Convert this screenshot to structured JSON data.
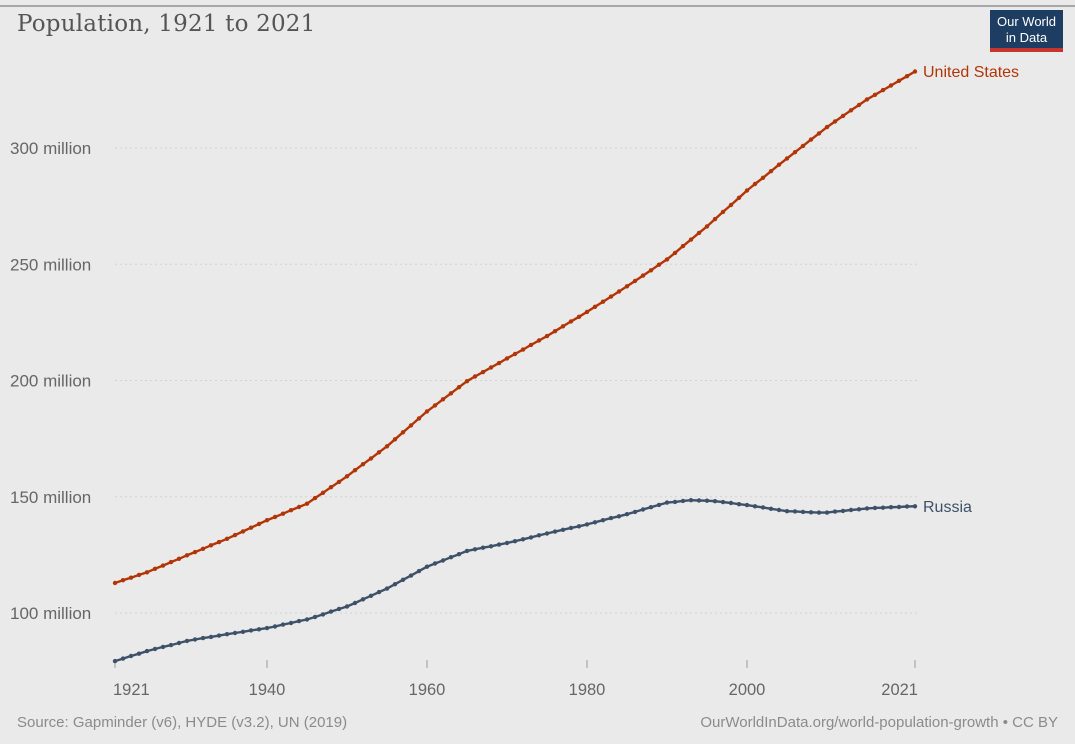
{
  "header": {
    "title": "Population, 1921 to 2021"
  },
  "logo": {
    "line1": "Our World",
    "line2": "in Data",
    "bg_color": "#1d3d63",
    "bar_color": "#c5342d",
    "text_color": "#ffffff"
  },
  "colors": {
    "background": "#ebeaea",
    "title_text": "#555555",
    "axis_text": "#666666",
    "gridline": "#d2d2d2",
    "tick_mark": "#999999",
    "footer_text": "#8b8b8b"
  },
  "chart_data": {
    "type": "line",
    "title": "Population, 1921 to 2021",
    "xlabel": "",
    "ylabel": "",
    "grid": "horizontal dashed",
    "legend_position": "line-end labels",
    "xlim": [
      1921,
      2021
    ],
    "ylim": [
      76,
      338
    ],
    "x_ticks": [
      1921,
      1940,
      1960,
      1980,
      2000,
      2021
    ],
    "y_ticks": [
      {
        "value": 100,
        "label": "100 million"
      },
      {
        "value": 150,
        "label": "150 million"
      },
      {
        "value": 200,
        "label": "200 million"
      },
      {
        "value": 250,
        "label": "250 million"
      },
      {
        "value": 300,
        "label": "300 million"
      }
    ],
    "x": [
      1921,
      1922,
      1923,
      1924,
      1925,
      1926,
      1927,
      1928,
      1929,
      1930,
      1931,
      1932,
      1933,
      1934,
      1935,
      1936,
      1937,
      1938,
      1939,
      1940,
      1941,
      1942,
      1943,
      1944,
      1945,
      1946,
      1947,
      1948,
      1949,
      1950,
      1951,
      1952,
      1953,
      1954,
      1955,
      1956,
      1957,
      1958,
      1959,
      1960,
      1961,
      1962,
      1963,
      1964,
      1965,
      1966,
      1967,
      1968,
      1969,
      1970,
      1971,
      1972,
      1973,
      1974,
      1975,
      1976,
      1977,
      1978,
      1979,
      1980,
      1981,
      1982,
      1983,
      1984,
      1985,
      1986,
      1987,
      1988,
      1989,
      1990,
      1991,
      1992,
      1993,
      1994,
      1995,
      1996,
      1997,
      1998,
      1999,
      2000,
      2001,
      2002,
      2003,
      2004,
      2005,
      2006,
      2007,
      2008,
      2009,
      2010,
      2011,
      2012,
      2013,
      2014,
      2015,
      2016,
      2017,
      2018,
      2019,
      2020,
      2021
    ],
    "series": [
      {
        "name": "United States",
        "color": "#b13507",
        "unit": "million",
        "values": [
          112.9,
          114.1,
          115.2,
          116.4,
          117.5,
          119.0,
          120.4,
          121.9,
          123.3,
          124.8,
          126.2,
          127.6,
          129.1,
          130.5,
          131.9,
          133.5,
          135.1,
          136.7,
          138.3,
          139.9,
          141.3,
          142.7,
          144.2,
          145.6,
          147.0,
          149.4,
          151.7,
          154.1,
          156.4,
          158.8,
          161.4,
          164.0,
          166.5,
          169.1,
          171.7,
          174.7,
          177.7,
          180.7,
          183.7,
          186.7,
          189.3,
          191.9,
          194.5,
          197.1,
          199.7,
          201.7,
          203.6,
          205.6,
          207.5,
          209.5,
          211.4,
          213.3,
          215.3,
          217.2,
          219.1,
          221.2,
          223.3,
          225.4,
          227.4,
          229.5,
          231.7,
          233.9,
          236.1,
          238.3,
          240.5,
          242.8,
          245.1,
          247.4,
          249.8,
          252.1,
          254.9,
          257.8,
          260.6,
          263.5,
          266.3,
          269.4,
          272.5,
          275.5,
          278.6,
          281.7,
          284.5,
          287.2,
          290.0,
          292.8,
          295.5,
          298.2,
          300.9,
          303.6,
          306.3,
          309.0,
          311.4,
          313.8,
          316.2,
          318.5,
          320.9,
          322.9,
          324.9,
          326.9,
          328.9,
          330.9,
          332.9
        ]
      },
      {
        "name": "Russia",
        "color": "#3d5168",
        "unit": "million",
        "values": [
          79.3,
          80.4,
          81.5,
          82.5,
          83.6,
          84.5,
          85.4,
          86.2,
          87.1,
          88.0,
          88.6,
          89.2,
          89.7,
          90.3,
          90.9,
          91.4,
          91.9,
          92.5,
          93.0,
          93.5,
          94.2,
          95.0,
          95.7,
          96.5,
          97.2,
          98.3,
          99.4,
          100.6,
          101.7,
          102.8,
          104.3,
          105.9,
          107.4,
          109.0,
          110.5,
          112.4,
          114.3,
          116.1,
          118.0,
          119.9,
          121.3,
          122.6,
          124.0,
          125.3,
          126.7,
          127.4,
          128.1,
          128.7,
          129.4,
          130.1,
          130.9,
          131.7,
          132.5,
          133.4,
          134.2,
          135.0,
          135.8,
          136.6,
          137.3,
          138.1,
          139.0,
          139.9,
          140.8,
          141.6,
          142.5,
          143.5,
          144.5,
          145.5,
          146.5,
          147.5,
          147.8,
          148.2,
          148.5,
          148.4,
          148.3,
          148.1,
          147.7,
          147.3,
          146.8,
          146.4,
          145.9,
          145.4,
          144.8,
          144.3,
          143.8,
          143.7,
          143.5,
          143.3,
          143.2,
          143.2,
          143.6,
          143.9,
          144.3,
          144.6,
          145.0,
          145.2,
          145.3,
          145.5,
          145.6,
          145.8,
          145.9
        ]
      }
    ]
  },
  "footer": {
    "source": "Source: Gapminder (v6), HYDE (v3.2), UN (2019)",
    "link": "OurWorldInData.org/world-population-growth • CC BY"
  }
}
